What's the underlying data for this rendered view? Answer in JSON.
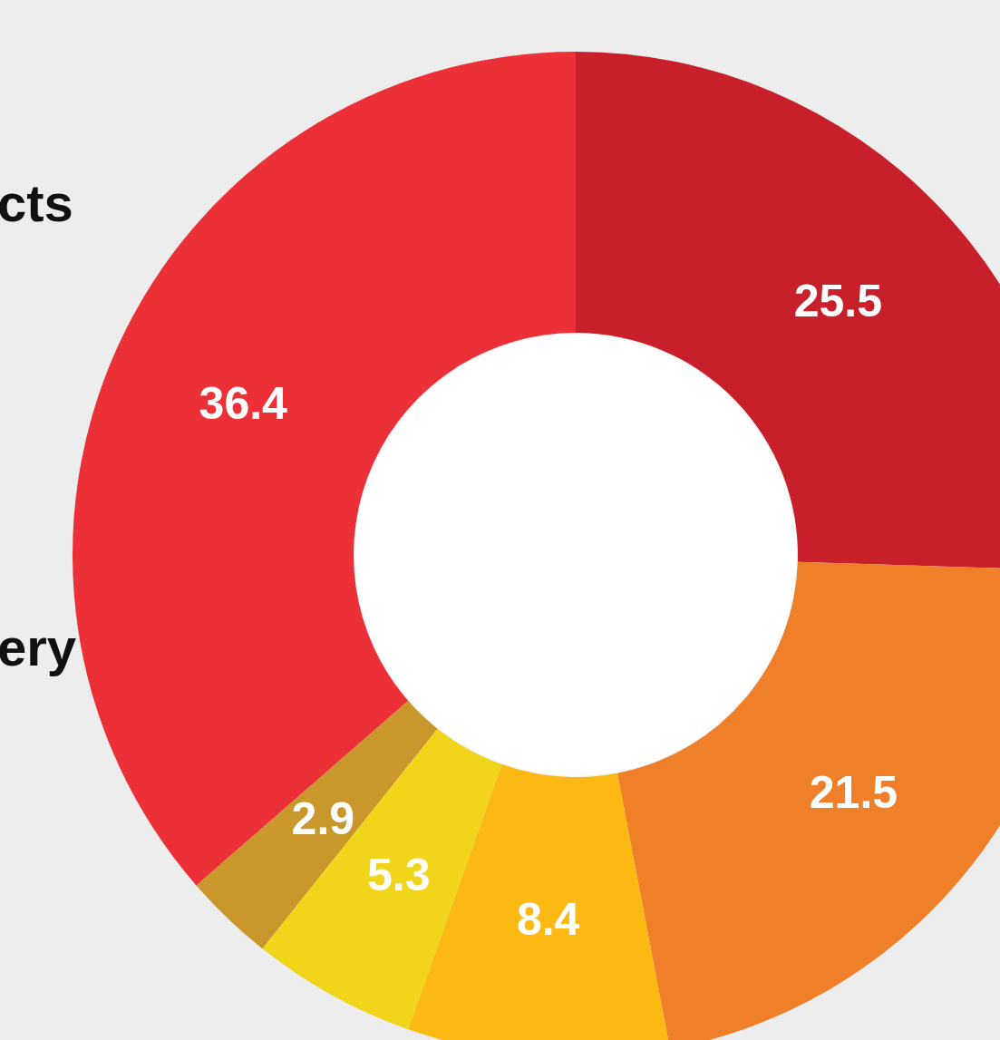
{
  "chart_data": {
    "type": "donut",
    "categories": [
      null,
      null,
      null,
      null,
      null,
      null
    ],
    "values": [
      25.5,
      21.5,
      8.4,
      5.3,
      2.9,
      36.4
    ],
    "colors": [
      "#c8202a",
      "#f07f2a",
      "#fcb813",
      "#f0d51a",
      "#c9972c",
      "#ec3038"
    ],
    "data_labels": true,
    "annotations": [
      "cts",
      "ery"
    ]
  }
}
